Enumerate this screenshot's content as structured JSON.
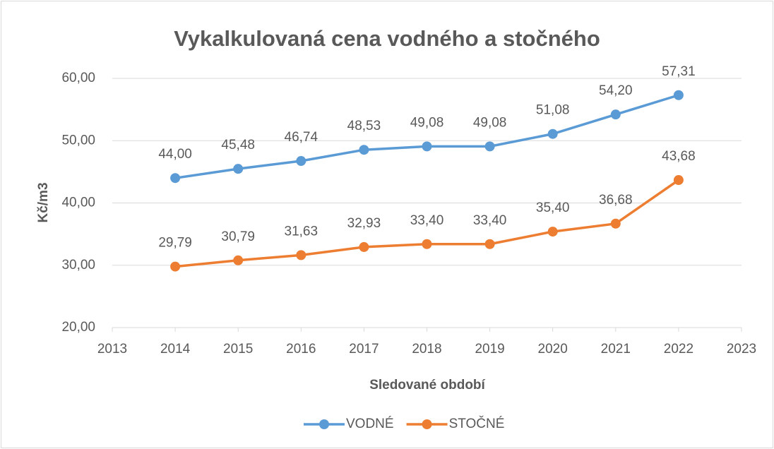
{
  "chart_data": {
    "type": "line",
    "title": "Vykalkulovaná cena vodného a stočného",
    "x_label": "Sledované období",
    "y_label": "Kč/m3",
    "x": [
      2014,
      2015,
      2016,
      2017,
      2018,
      2019,
      2020,
      2021,
      2022
    ],
    "series": [
      {
        "name": "VODNÉ",
        "color": "#5b9bd5",
        "values": [
          44.0,
          45.48,
          46.74,
          48.53,
          49.08,
          49.08,
          51.08,
          54.2,
          57.31
        ],
        "value_labels": [
          "44,00",
          "45,48",
          "46,74",
          "48,53",
          "49,08",
          "49,08",
          "51,08",
          "54,20",
          "57,31"
        ]
      },
      {
        "name": "STOČNÉ",
        "color": "#ed7d31",
        "values": [
          29.79,
          30.79,
          31.63,
          32.93,
          33.4,
          33.4,
          35.4,
          36.68,
          43.68
        ],
        "value_labels": [
          "29,79",
          "30,79",
          "31,63",
          "32,93",
          "33,40",
          "33,40",
          "35,40",
          "36,68",
          "43,68"
        ]
      }
    ],
    "xlim": [
      2013,
      2023
    ],
    "xticks": [
      2013,
      2014,
      2015,
      2016,
      2017,
      2018,
      2019,
      2020,
      2021,
      2022,
      2023
    ],
    "ylim": [
      20,
      60
    ],
    "yticks": [
      {
        "value": 20,
        "label": "20,00"
      },
      {
        "value": 30,
        "label": "30,00"
      },
      {
        "value": 40,
        "label": "40,00"
      },
      {
        "value": 50,
        "label": "50,00"
      },
      {
        "value": 60,
        "label": "60,00"
      }
    ],
    "grid": true,
    "legend": "bottom"
  }
}
